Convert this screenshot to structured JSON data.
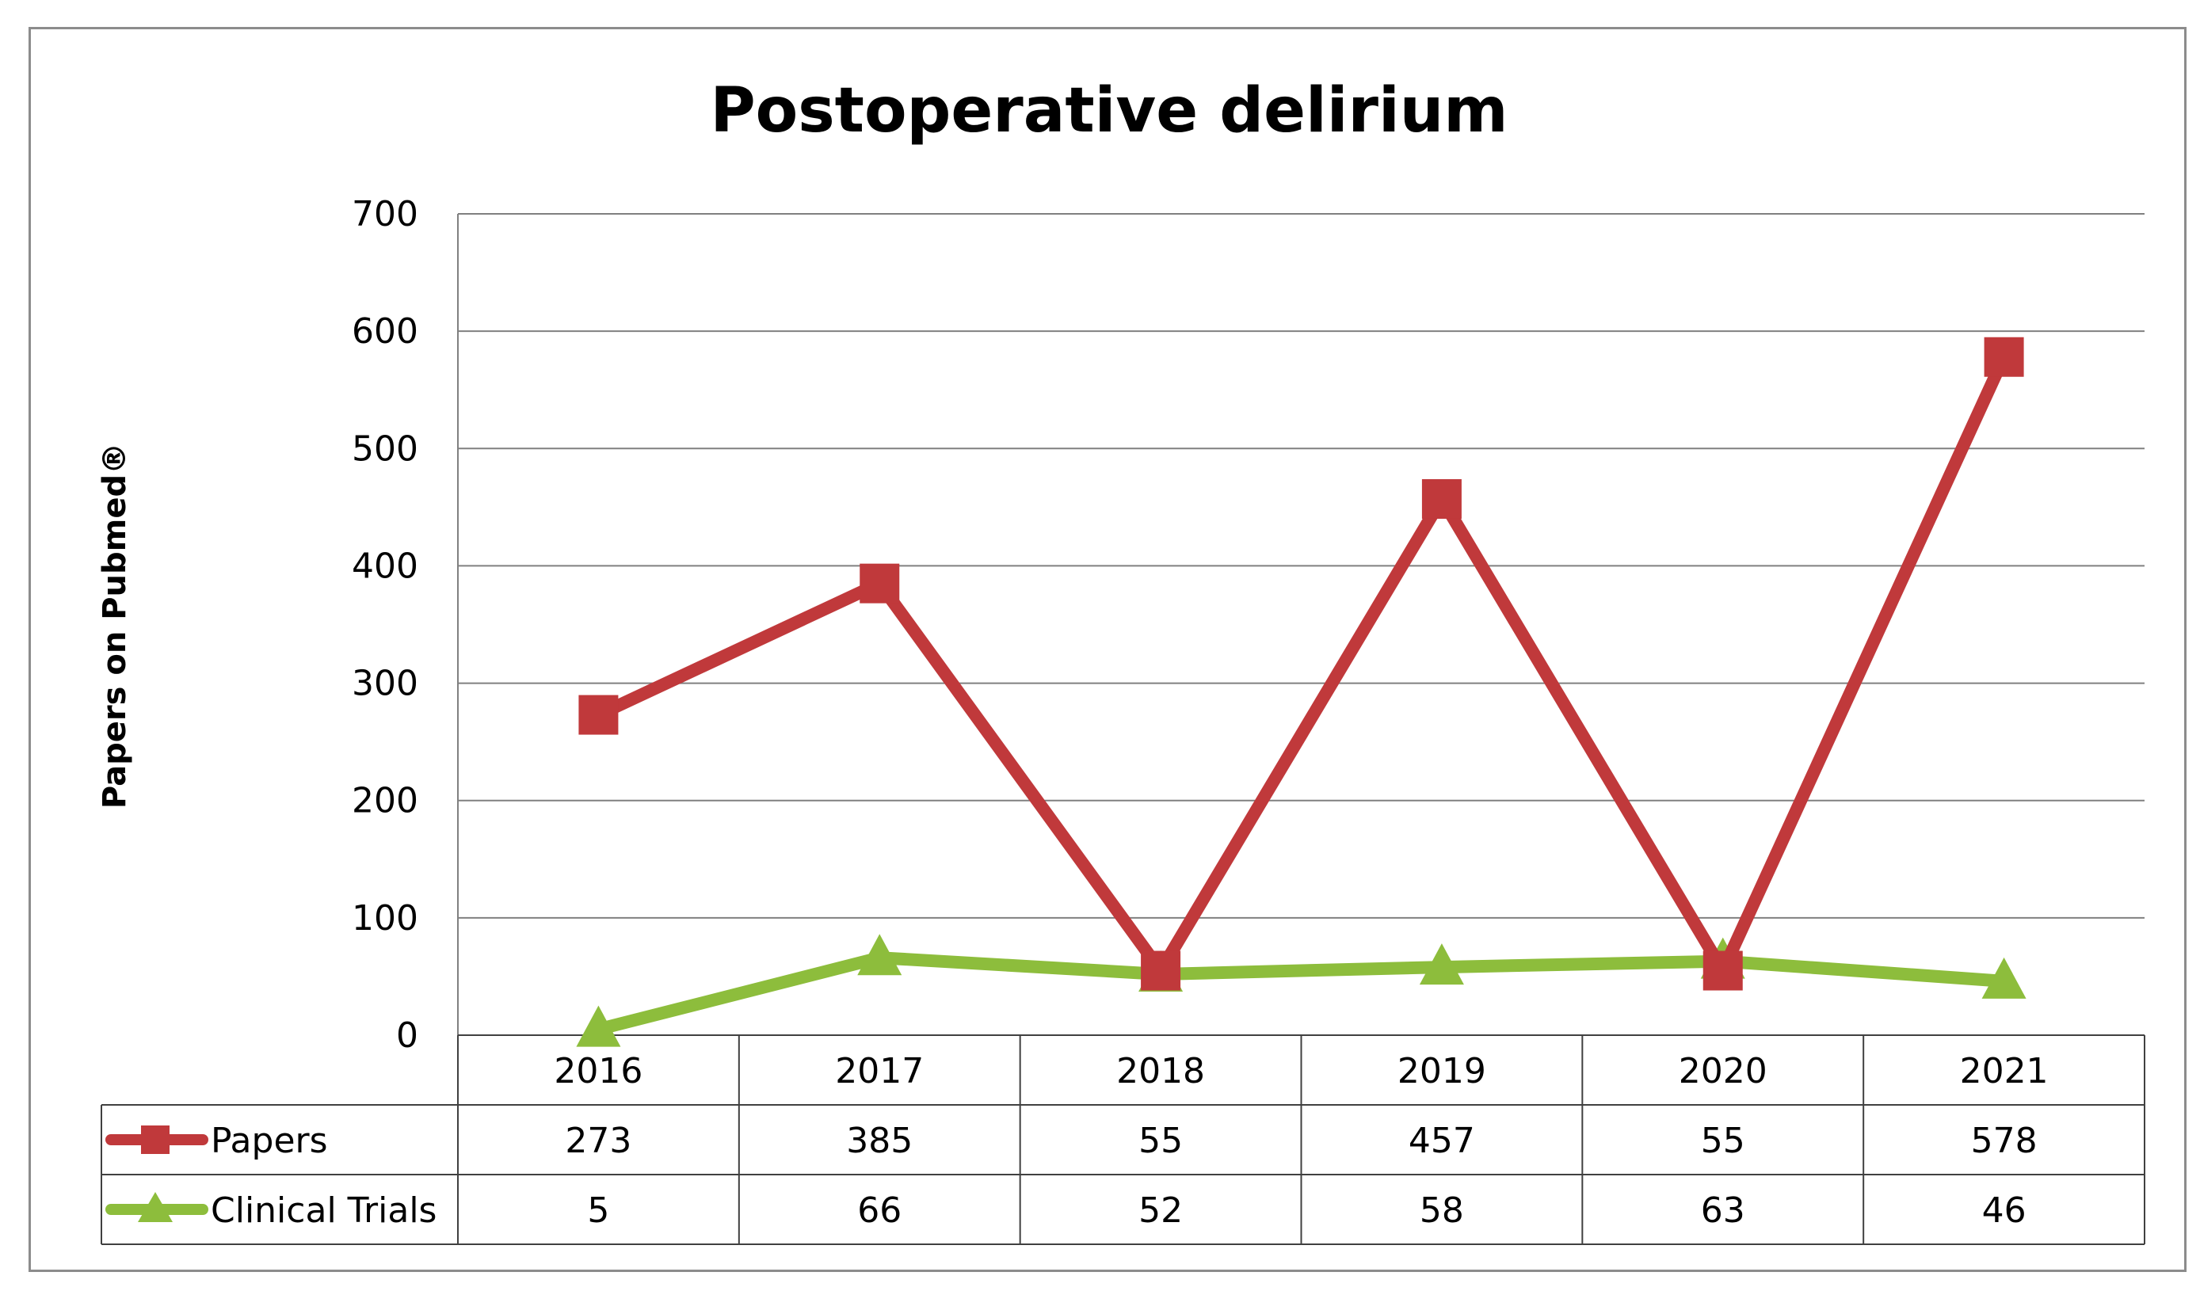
{
  "chart_data": {
    "type": "line",
    "title": "Postoperative delirium",
    "xlabel": "",
    "ylabel": "Papers on Pubmed®",
    "categories": [
      "2016",
      "2017",
      "2018",
      "2019",
      "2020",
      "2021"
    ],
    "ylim": [
      0,
      700
    ],
    "yticks": [
      0,
      100,
      200,
      300,
      400,
      500,
      600,
      700
    ],
    "grid": true,
    "legend": "data-table",
    "series": [
      {
        "name": "Papers",
        "values": [
          273,
          385,
          55,
          457,
          55,
          578
        ],
        "color": "#c0393b",
        "marker": "square"
      },
      {
        "name": "Clinical Trials",
        "values": [
          5,
          66,
          52,
          58,
          63,
          46
        ],
        "color": "#8dbd3c",
        "marker": "triangle"
      }
    ]
  }
}
